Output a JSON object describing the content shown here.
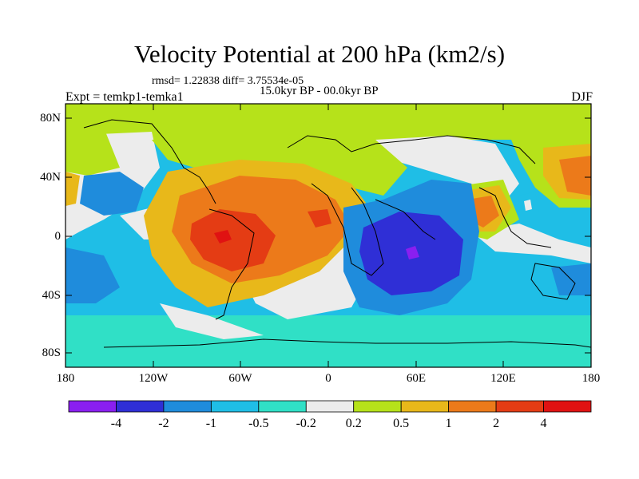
{
  "title": "Velocity Potential at 200 hPa (km2/s)",
  "stats": "rmsd= 1.22838  diff= 3.75534e-05",
  "period": "15.0kyr BP - 00.0kyr BP",
  "experiment": "Expt = temkp1-temka1",
  "season": "DJF",
  "map": {
    "y_axis_labels": [
      "80N",
      "40N",
      "0",
      "40S",
      "80S"
    ],
    "x_axis_labels": [
      "180",
      "120W",
      "60W",
      "0",
      "60E",
      "120E",
      "180"
    ]
  },
  "colorbar": {
    "labels": [
      "-4",
      "-2",
      "-1",
      "-0.5",
      "-0.2",
      "0.2",
      "0.5",
      "1",
      "2",
      "4"
    ],
    "colors": [
      "#8a1ff0",
      "#2f2fd6",
      "#1f8cdc",
      "#1fbee6",
      "#30e0c6",
      "#ececec",
      "#b6e21a",
      "#e8b81a",
      "#ec7a1a",
      "#e43c14",
      "#e01212"
    ]
  }
}
